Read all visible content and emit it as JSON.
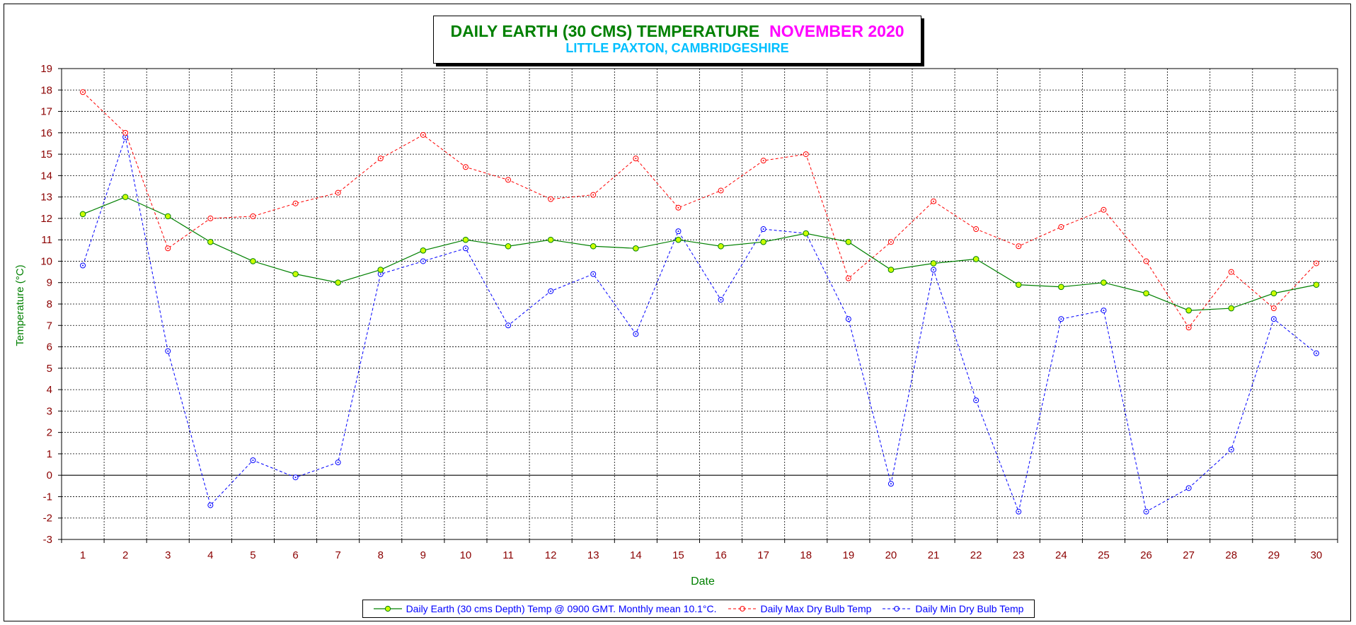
{
  "chart_data": {
    "type": "line",
    "title": "DAILY EARTH (30 CMS) TEMPERATURE",
    "title_month": "NOVEMBER 2020",
    "subtitle": "LITTLE PAXTON, CAMBRIDGESHIRE",
    "xlabel": "Date",
    "ylabel": "Temperature (°C)",
    "ylim": [
      -3,
      19
    ],
    "grid": true,
    "legend_position": "bottom",
    "categories": [
      "1",
      "2",
      "3",
      "4",
      "5",
      "6",
      "7",
      "8",
      "9",
      "10",
      "11",
      "12",
      "13",
      "14",
      "15",
      "16",
      "17",
      "18",
      "19",
      "20",
      "21",
      "22",
      "23",
      "24",
      "25",
      "26",
      "27",
      "28",
      "29",
      "30"
    ],
    "series": [
      {
        "name": "Daily Earth (30 cms Depth) Temp @ 0900 GMT. Monthly mean 10.1°C.",
        "color": "#008000",
        "marker_fill": "#ccff00",
        "line_style": "solid",
        "values": [
          12.2,
          13.0,
          12.1,
          10.9,
          10.0,
          9.4,
          9.0,
          9.6,
          10.5,
          11.0,
          10.7,
          11.0,
          10.7,
          10.6,
          11.0,
          10.7,
          10.9,
          11.3,
          10.9,
          9.6,
          9.9,
          10.1,
          8.9,
          8.8,
          9.0,
          8.5,
          7.7,
          7.8,
          8.5,
          8.9
        ]
      },
      {
        "name": "Daily Max Dry Bulb Temp",
        "color": "#ff0000",
        "marker_fill": "none",
        "line_style": "dashed",
        "values": [
          17.9,
          16.0,
          10.6,
          12.0,
          12.1,
          12.7,
          13.2,
          14.8,
          15.9,
          14.4,
          13.8,
          12.9,
          13.1,
          14.8,
          12.5,
          13.3,
          14.7,
          15.0,
          9.2,
          10.9,
          12.8,
          11.5,
          10.7,
          11.6,
          12.4,
          10.0,
          6.9,
          9.5,
          7.8,
          9.9
        ]
      },
      {
        "name": "Daily Min Dry Bulb Temp",
        "color": "#0000ff",
        "marker_fill": "none",
        "line_style": "dashed",
        "values": [
          9.8,
          15.8,
          5.8,
          -1.4,
          0.7,
          -0.1,
          0.6,
          9.4,
          10.0,
          10.6,
          7.0,
          8.6,
          9.4,
          6.6,
          11.4,
          8.2,
          11.5,
          11.3,
          7.3,
          -0.4,
          9.6,
          3.5,
          -1.7,
          7.3,
          7.7,
          -1.7,
          -0.6,
          1.2,
          7.3,
          5.7
        ]
      }
    ]
  }
}
